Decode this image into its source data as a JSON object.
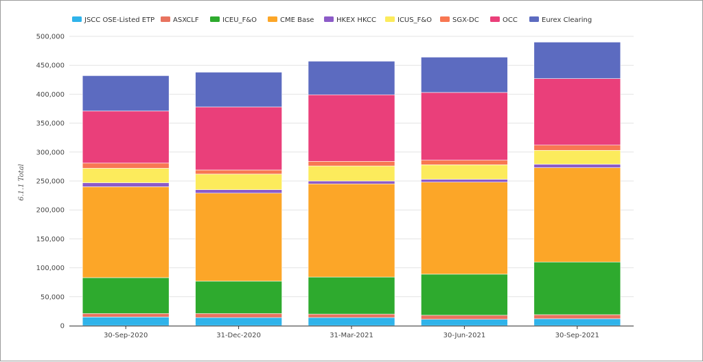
{
  "chart_data": {
    "type": "bar",
    "stacked": true,
    "ylabel": "6.1.1 Total",
    "ylim": [
      0,
      500000
    ],
    "yticks": [
      0,
      50000,
      100000,
      150000,
      200000,
      250000,
      300000,
      350000,
      400000,
      450000,
      500000
    ],
    "ytick_labels": [
      "0",
      "50,000",
      "100,000",
      "150,000",
      "200,000",
      "250,000",
      "300,000",
      "350,000",
      "400,000",
      "450,000",
      "500,000"
    ],
    "grid": true,
    "legend_position": "top",
    "categories": [
      "30-Sep-2020",
      "31-Dec-2020",
      "31-Mar-2021",
      "30-Jun-2021",
      "30-Sep-2021"
    ],
    "series": [
      {
        "name": "JSCC OSE-Listed ETP",
        "color": "#2fb3ea",
        "values": [
          15000,
          14000,
          14000,
          11000,
          12000
        ]
      },
      {
        "name": "ASXCLF",
        "color": "#e8735f",
        "values": [
          6000,
          7000,
          6000,
          7000,
          7000
        ]
      },
      {
        "name": "ICEU_F&O",
        "color": "#2eaa2e",
        "values": [
          62000,
          56000,
          64000,
          71000,
          91000
        ]
      },
      {
        "name": "CME Base",
        "color": "#fca628",
        "values": [
          157000,
          152000,
          161000,
          159000,
          163000
        ]
      },
      {
        "name": "HKEX HKCC",
        "color": "#8c5bc8",
        "values": [
          7000,
          6000,
          5000,
          5000,
          6000
        ]
      },
      {
        "name": "ICUS_F&O",
        "color": "#fceb5c",
        "values": [
          25000,
          27000,
          26000,
          25000,
          24000
        ]
      },
      {
        "name": "SGX-DC",
        "color": "#f87752",
        "values": [
          9000,
          7000,
          8000,
          8000,
          9000
        ]
      },
      {
        "name": "OCC",
        "color": "#ea3f7a",
        "values": [
          90000,
          109000,
          115000,
          117000,
          115000
        ]
      },
      {
        "name": "Eurex Clearing",
        "color": "#5c6bc0",
        "values": [
          61000,
          60000,
          58000,
          61000,
          63000
        ]
      }
    ]
  }
}
